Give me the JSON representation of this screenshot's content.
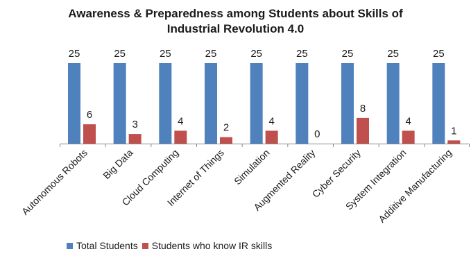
{
  "chart_data": {
    "type": "bar",
    "title_line1": "Awareness  & Preparedness among Students about Skills of",
    "title_line2": "Industrial Revolution 4.0",
    "categories": [
      "Autonomous Robots",
      "Big Data",
      "Cloud Computing",
      "Internet of Things",
      "Simulation",
      "Augmented Reality",
      "Cyber Security",
      "System Integration",
      "Additive Manufacturing"
    ],
    "series": [
      {
        "name": "Total Students",
        "values": [
          25,
          25,
          25,
          25,
          25,
          25,
          25,
          25,
          25
        ],
        "color": "#4F81BD"
      },
      {
        "name": "Students who know IR skills",
        "values": [
          6,
          3,
          4,
          2,
          4,
          0,
          8,
          4,
          1
        ],
        "color": "#C0504D"
      }
    ],
    "ylim": [
      0,
      25
    ],
    "grid": false,
    "legend_position": "bottom"
  }
}
